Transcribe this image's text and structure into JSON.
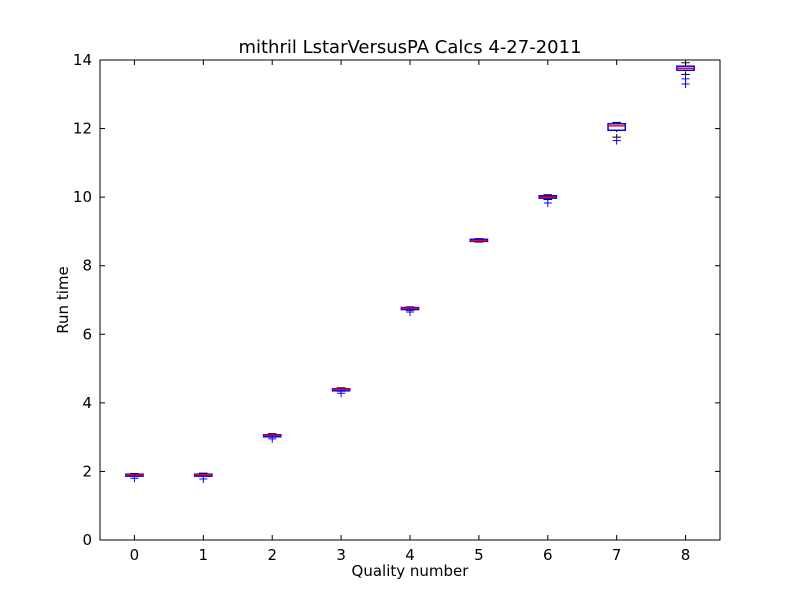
{
  "chart_data": {
    "type": "box",
    "title": "mithril LstarVersusPA Calcs 4-27-2011",
    "xlabel": "Quality number",
    "ylabel": "Run time",
    "xlim": [
      -0.5,
      8.5
    ],
    "ylim": [
      0,
      14
    ],
    "x_ticks": [
      "0",
      "1",
      "2",
      "3",
      "4",
      "5",
      "6",
      "7",
      "8"
    ],
    "y_ticks": [
      "0",
      "2",
      "4",
      "6",
      "8",
      "10",
      "12",
      "14"
    ],
    "grid": false,
    "categories": [
      "0",
      "1",
      "2",
      "3",
      "4",
      "5",
      "6",
      "7",
      "8"
    ],
    "boxes": [
      {
        "q1": 1.88,
        "median": 1.9,
        "q3": 1.92,
        "whisker_low": 1.86,
        "whisker_high": 1.94,
        "outliers": [
          1.8
        ]
      },
      {
        "q1": 1.88,
        "median": 1.9,
        "q3": 1.92,
        "whisker_low": 1.86,
        "whisker_high": 1.95,
        "outliers": [
          1.78
        ]
      },
      {
        "q1": 3.03,
        "median": 3.05,
        "q3": 3.07,
        "whisker_low": 3.0,
        "whisker_high": 3.1,
        "outliers": [
          2.95
        ]
      },
      {
        "q1": 4.37,
        "median": 4.39,
        "q3": 4.41,
        "whisker_low": 4.34,
        "whisker_high": 4.44,
        "outliers": [
          4.28
        ]
      },
      {
        "q1": 6.74,
        "median": 6.76,
        "q3": 6.78,
        "whisker_low": 6.7,
        "whisker_high": 6.8,
        "outliers": [
          6.65
        ]
      },
      {
        "q1": 8.71,
        "median": 8.73,
        "q3": 8.77,
        "whisker_low": 8.69,
        "whisker_high": 8.79,
        "outliers": []
      },
      {
        "q1": 9.97,
        "median": 10.0,
        "q3": 10.04,
        "whisker_low": 9.93,
        "whisker_high": 10.07,
        "outliers": [
          9.83
        ]
      },
      {
        "q1": 11.95,
        "median": 12.08,
        "q3": 12.14,
        "whisker_low": 11.75,
        "whisker_high": 12.18,
        "outliers": [
          11.65
        ]
      },
      {
        "q1": 13.7,
        "median": 13.76,
        "q3": 13.82,
        "whisker_low": 13.58,
        "whisker_high": 13.92,
        "outliers": [
          13.45,
          13.3
        ]
      }
    ],
    "colors": {
      "box": "#0000ff",
      "median": "#ff0000",
      "whisker": "#000000",
      "outlier": "#0000ff"
    }
  }
}
